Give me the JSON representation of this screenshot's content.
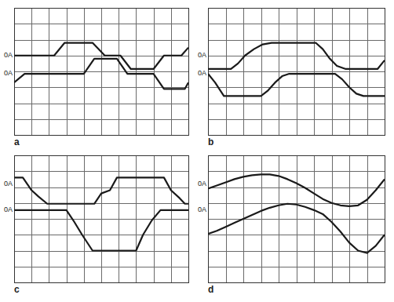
{
  "chart_data": [
    {
      "type": "line",
      "title": "a",
      "xlim": [
        0,
        10
      ],
      "ylim": [
        0,
        8
      ],
      "xticks": [
        0,
        1,
        2,
        3,
        4,
        5,
        6,
        7,
        8,
        9,
        10
      ],
      "yticks": [
        0,
        1,
        2,
        3,
        4,
        5,
        6,
        7,
        8
      ],
      "grid": true,
      "tick_labels": false,
      "annotations": [
        {
          "text": "0A",
          "y": 5.0
        },
        {
          "text": "0A",
          "y": 3.85
        }
      ],
      "series": [
        {
          "color": "#1a1a1a",
          "x": [
            0,
            2.3,
            2.9,
            4.5,
            5.2,
            6.1,
            6.7,
            8.0,
            8.6,
            9.6,
            10
          ],
          "values": [
            5,
            5,
            5.8,
            5.8,
            5,
            5,
            4.15,
            4.15,
            5,
            5,
            5.5
          ]
        },
        {
          "color": "#1a1a1a",
          "x": [
            0,
            0.6,
            4.0,
            4.6,
            5.9,
            6.5,
            8.0,
            8.6,
            9.8,
            10
          ],
          "values": [
            3.3,
            3.85,
            3.85,
            4.8,
            4.8,
            3.85,
            3.85,
            2.9,
            2.9,
            3.3
          ]
        }
      ]
    },
    {
      "type": "line",
      "title": "b",
      "xlim": [
        0,
        10
      ],
      "ylim": [
        0,
        8
      ],
      "xticks": [
        0,
        1,
        2,
        3,
        4,
        5,
        6,
        7,
        8,
        9,
        10
      ],
      "yticks": [
        0,
        1,
        2,
        3,
        4,
        5,
        6,
        7,
        8
      ],
      "grid": true,
      "tick_labels": false,
      "annotations": [
        {
          "text": "0A",
          "y": 5.0
        },
        {
          "text": "0A",
          "y": 3.85
        }
      ],
      "series": [
        {
          "color": "#1a1a1a",
          "x": [
            0,
            1.3,
            1.7,
            2.1,
            2.6,
            3.1,
            3.6,
            6.1,
            6.5,
            6.9,
            7.3,
            7.8,
            9.6,
            10
          ],
          "values": [
            4.15,
            4.15,
            4.5,
            5.0,
            5.4,
            5.7,
            5.8,
            5.8,
            5.4,
            4.8,
            4.35,
            4.15,
            4.15,
            4.7
          ]
        },
        {
          "color": "#1a1a1a",
          "x": [
            0,
            0.4,
            0.9,
            3.0,
            3.4,
            3.8,
            4.2,
            4.6,
            7.2,
            7.6,
            8.0,
            8.4,
            8.8,
            10
          ],
          "values": [
            3.85,
            3.3,
            2.45,
            2.45,
            2.8,
            3.3,
            3.7,
            3.85,
            3.85,
            3.5,
            3.0,
            2.6,
            2.45,
            2.45
          ]
        }
      ]
    },
    {
      "type": "line",
      "title": "c",
      "xlim": [
        0,
        10
      ],
      "ylim": [
        0,
        8
      ],
      "xticks": [
        0,
        1,
        2,
        3,
        4,
        5,
        6,
        7,
        8,
        9,
        10
      ],
      "yticks": [
        0,
        1,
        2,
        3,
        4,
        5,
        6,
        7,
        8
      ],
      "grid": true,
      "tick_labels": false,
      "annotations": [
        {
          "text": "0A",
          "y": 6.2
        },
        {
          "text": "0A",
          "y": 4.55
        }
      ],
      "series": [
        {
          "color": "#1a1a1a",
          "x": [
            0,
            0.5,
            1.0,
            1.4,
            1.9,
            4.6,
            5.0,
            5.5,
            5.9,
            8.6,
            9.0,
            9.5,
            9.8,
            10
          ],
          "values": [
            6.6,
            6.6,
            5.8,
            5.4,
            4.95,
            4.95,
            5.6,
            5.8,
            6.6,
            6.6,
            5.8,
            5.3,
            4.95,
            4.95
          ]
        },
        {
          "color": "#1a1a1a",
          "x": [
            0,
            3.0,
            3.4,
            3.9,
            4.5,
            7.0,
            7.4,
            7.9,
            8.4,
            10
          ],
          "values": [
            4.55,
            4.55,
            3.9,
            3.0,
            2.0,
            2.0,
            3.0,
            3.9,
            4.55,
            4.55
          ]
        }
      ]
    },
    {
      "type": "line",
      "title": "d",
      "xlim": [
        0,
        10
      ],
      "ylim": [
        0,
        8
      ],
      "xticks": [
        0,
        1,
        2,
        3,
        4,
        5,
        6,
        7,
        8,
        9,
        10
      ],
      "yticks": [
        0,
        1,
        2,
        3,
        4,
        5,
        6,
        7,
        8
      ],
      "grid": true,
      "tick_labels": false,
      "annotations": [
        {
          "text": "0A",
          "y": 6.2
        },
        {
          "text": "0A",
          "y": 4.55
        }
      ],
      "series": [
        {
          "color": "#1a1a1a",
          "x": [
            0,
            0.5,
            1,
            1.5,
            2,
            2.5,
            3,
            3.5,
            4,
            4.5,
            5,
            5.5,
            6,
            6.5,
            7,
            7.5,
            8,
            8.5,
            9,
            9.5,
            10
          ],
          "values": [
            5.9,
            6.1,
            6.3,
            6.5,
            6.65,
            6.75,
            6.8,
            6.8,
            6.7,
            6.5,
            6.25,
            5.95,
            5.6,
            5.25,
            5.0,
            4.85,
            4.8,
            4.85,
            5.2,
            5.8,
            6.5
          ]
        },
        {
          "color": "#1a1a1a",
          "x": [
            0,
            0.5,
            1,
            1.5,
            2,
            2.5,
            3,
            3.5,
            4,
            4.5,
            5,
            5.5,
            6,
            6.5,
            7,
            7.5,
            8,
            8.5,
            9,
            9.5,
            10
          ],
          "values": [
            3.05,
            3.25,
            3.5,
            3.75,
            4.0,
            4.25,
            4.5,
            4.7,
            4.85,
            4.95,
            4.9,
            4.75,
            4.55,
            4.3,
            3.8,
            3.2,
            2.5,
            2.0,
            1.85,
            2.3,
            3.0
          ]
        }
      ]
    }
  ]
}
